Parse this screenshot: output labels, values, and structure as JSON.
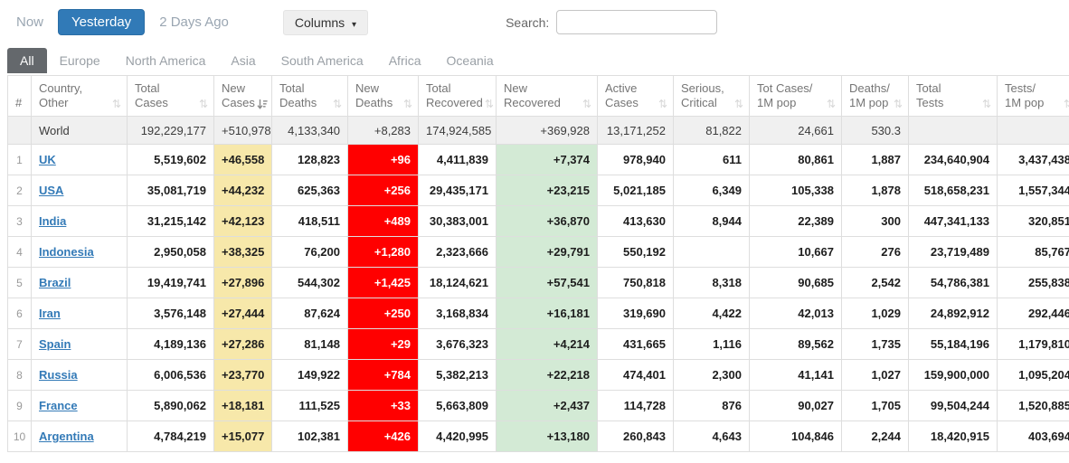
{
  "toolbar": {
    "now_label": "Now",
    "yesterday_label": "Yesterday",
    "two_days_label": "2 Days Ago",
    "columns_label": "Columns",
    "search_label": "Search:",
    "search_value": ""
  },
  "tabs": [
    {
      "label": "All",
      "active": true
    },
    {
      "label": "Europe",
      "active": false
    },
    {
      "label": "North America",
      "active": false
    },
    {
      "label": "Asia",
      "active": false
    },
    {
      "label": "South America",
      "active": false
    },
    {
      "label": "Africa",
      "active": false
    },
    {
      "label": "Oceania",
      "active": false
    }
  ],
  "colors": {
    "accent_blue": "#317AB7",
    "new_cases_bg": "#F7E8AA",
    "new_deaths_bg": "#FF0000",
    "new_recovered_bg": "#D3EAD5",
    "world_row_bg": "#F0F0F0",
    "active_tab_bg": "#64686C"
  },
  "table": {
    "columns": [
      {
        "id": "rank",
        "line1": "#",
        "line2": "",
        "sort": "none"
      },
      {
        "id": "country",
        "line1": "Country,",
        "line2": "Other",
        "sort": "inactive"
      },
      {
        "id": "total-cases",
        "line1": "Total",
        "line2": "Cases",
        "sort": "inactive"
      },
      {
        "id": "new-cases",
        "line1": "New",
        "line2": "Cases",
        "sort": "desc"
      },
      {
        "id": "total-deaths",
        "line1": "Total",
        "line2": "Deaths",
        "sort": "inactive"
      },
      {
        "id": "new-deaths",
        "line1": "New",
        "line2": "Deaths",
        "sort": "inactive"
      },
      {
        "id": "total-recovered",
        "line1": "Total",
        "line2": "Recovered",
        "sort": "inactive"
      },
      {
        "id": "new-recovered",
        "line1": "New",
        "line2": "Recovered",
        "sort": "inactive"
      },
      {
        "id": "active-cases",
        "line1": "Active",
        "line2": "Cases",
        "sort": "inactive"
      },
      {
        "id": "serious-critical",
        "line1": "Serious,",
        "line2": "Critical",
        "sort": "inactive"
      },
      {
        "id": "cases-per-1m",
        "line1": "Tot Cases/",
        "line2": "1M pop",
        "sort": "inactive"
      },
      {
        "id": "deaths-per-1m",
        "line1": "Deaths/",
        "line2": "1M pop",
        "sort": "inactive"
      },
      {
        "id": "total-tests",
        "line1": "Total",
        "line2": "Tests",
        "sort": "inactive"
      },
      {
        "id": "tests-per-1m",
        "line1": "Tests/",
        "line2": "1M pop",
        "sort": "inactive"
      }
    ],
    "world": {
      "label": "World",
      "cells": [
        "192,229,177",
        "+510,978",
        "4,133,340",
        "+8,283",
        "174,924,585",
        "+369,928",
        "13,171,252",
        "81,822",
        "24,661",
        "530.3",
        "",
        ""
      ]
    },
    "rows": [
      {
        "rank": "1",
        "country": "UK",
        "cells": [
          "5,519,602",
          "+46,558",
          "128,823",
          "+96",
          "4,411,839",
          "+7,374",
          "978,940",
          "611",
          "80,861",
          "1,887",
          "234,640,904",
          "3,437,438"
        ]
      },
      {
        "rank": "2",
        "country": "USA",
        "cells": [
          "35,081,719",
          "+44,232",
          "625,363",
          "+256",
          "29,435,171",
          "+23,215",
          "5,021,185",
          "6,349",
          "105,338",
          "1,878",
          "518,658,231",
          "1,557,344"
        ]
      },
      {
        "rank": "3",
        "country": "India",
        "cells": [
          "31,215,142",
          "+42,123",
          "418,511",
          "+489",
          "30,383,001",
          "+36,870",
          "413,630",
          "8,944",
          "22,389",
          "300",
          "447,341,133",
          "320,851"
        ]
      },
      {
        "rank": "4",
        "country": "Indonesia",
        "cells": [
          "2,950,058",
          "+38,325",
          "76,200",
          "+1,280",
          "2,323,666",
          "+29,791",
          "550,192",
          "",
          "10,667",
          "276",
          "23,719,489",
          "85,767"
        ]
      },
      {
        "rank": "5",
        "country": "Brazil",
        "cells": [
          "19,419,741",
          "+27,896",
          "544,302",
          "+1,425",
          "18,124,621",
          "+57,541",
          "750,818",
          "8,318",
          "90,685",
          "2,542",
          "54,786,381",
          "255,838"
        ]
      },
      {
        "rank": "6",
        "country": "Iran",
        "cells": [
          "3,576,148",
          "+27,444",
          "87,624",
          "+250",
          "3,168,834",
          "+16,181",
          "319,690",
          "4,422",
          "42,013",
          "1,029",
          "24,892,912",
          "292,446"
        ]
      },
      {
        "rank": "7",
        "country": "Spain",
        "cells": [
          "4,189,136",
          "+27,286",
          "81,148",
          "+29",
          "3,676,323",
          "+4,214",
          "431,665",
          "1,116",
          "89,562",
          "1,735",
          "55,184,196",
          "1,179,810"
        ]
      },
      {
        "rank": "8",
        "country": "Russia",
        "cells": [
          "6,006,536",
          "+23,770",
          "149,922",
          "+784",
          "5,382,213",
          "+22,218",
          "474,401",
          "2,300",
          "41,141",
          "1,027",
          "159,900,000",
          "1,095,204"
        ]
      },
      {
        "rank": "9",
        "country": "France",
        "cells": [
          "5,890,062",
          "+18,181",
          "111,525",
          "+33",
          "5,663,809",
          "+2,437",
          "114,728",
          "876",
          "90,027",
          "1,705",
          "99,504,244",
          "1,520,885"
        ]
      },
      {
        "rank": "10",
        "country": "Argentina",
        "cells": [
          "4,784,219",
          "+15,077",
          "102,381",
          "+426",
          "4,420,995",
          "+13,180",
          "260,843",
          "4,643",
          "104,846",
          "2,244",
          "18,420,915",
          "403,694"
        ]
      }
    ]
  }
}
